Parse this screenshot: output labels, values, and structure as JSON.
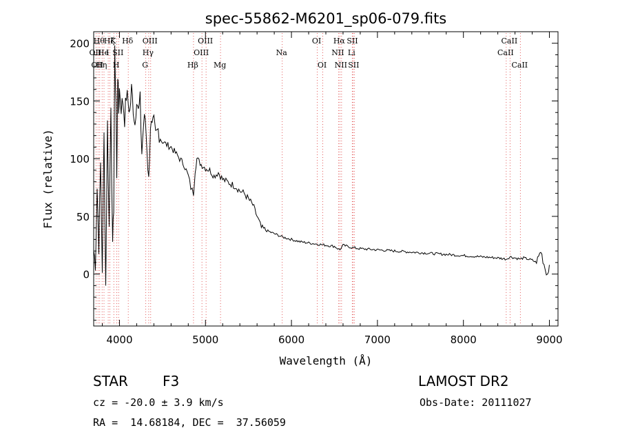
{
  "chart_data": {
    "type": "line",
    "title": "spec-55862-M6201_sp06-079.fits",
    "xlabel": "Wavelength (Å)",
    "ylabel": "Flux (relative)",
    "xlim": [
      3700,
      9100
    ],
    "ylim": [
      -45,
      210
    ],
    "x_ticks": [
      4000,
      5000,
      6000,
      7000,
      8000,
      9000
    ],
    "x_tick_labels": [
      "4000",
      "5000",
      "6000",
      "7000",
      "8000",
      "9000"
    ],
    "y_ticks": [
      0,
      50,
      100,
      150,
      200
    ],
    "y_tick_labels": [
      "0",
      "50",
      "100",
      "150",
      "200"
    ],
    "grid": false,
    "series": [
      {
        "x": [
          3700,
          3720,
          3740,
          3760,
          3780,
          3800,
          3820,
          3840,
          3860,
          3880,
          3900,
          3920,
          3933,
          3945,
          3960,
          3968,
          3980,
          3990,
          4000,
          4020,
          4040,
          4060,
          4080,
          4100,
          4120,
          4140,
          4160,
          4180,
          4200,
          4220,
          4240,
          4260,
          4280,
          4300,
          4320,
          4340,
          4360,
          4380,
          4400,
          4420,
          4450,
          4500,
          4550,
          4600,
          4650,
          4700,
          4750,
          4800,
          4830,
          4861,
          4880,
          4900,
          4950,
          5000,
          5050,
          5100,
          5150,
          5200,
          5250,
          5300,
          5350,
          5400,
          5450,
          5500,
          5550,
          5600,
          5650,
          5700,
          5800,
          5900,
          6000,
          6100,
          6200,
          6300,
          6400,
          6500,
          6563,
          6600,
          6700,
          6800,
          7000,
          7200,
          7400,
          7600,
          7800,
          8000,
          8200,
          8400,
          8498,
          8542,
          8600,
          8662,
          8700,
          8800,
          8850,
          8900,
          8950,
          8980,
          9000
        ],
        "y": [
          20,
          10,
          75,
          25,
          95,
          5,
          120,
          -10,
          130,
          40,
          150,
          20,
          60,
          190,
          150,
          80,
          175,
          140,
          160,
          145,
          150,
          135,
          155,
          150,
          140,
          160,
          145,
          130,
          155,
          140,
          150,
          105,
          130,
          135,
          110,
          80,
          130,
          125,
          130,
          120,
          125,
          115,
          112,
          110,
          105,
          100,
          95,
          85,
          75,
          70,
          90,
          100,
          95,
          92,
          90,
          85,
          88,
          82,
          80,
          78,
          76,
          72,
          70,
          65,
          60,
          50,
          40,
          38,
          35,
          32,
          30,
          28,
          27,
          26,
          25,
          24,
          21,
          25,
          23,
          22,
          21,
          20,
          19,
          18,
          17,
          16,
          15,
          14,
          13,
          15,
          14,
          13,
          14,
          12,
          10,
          20,
          5,
          0,
          8
        ],
        "color": "#000000"
      }
    ],
    "line_markers": [
      {
        "x": 3727,
        "label": "OII",
        "row": 2
      },
      {
        "x": 3750,
        "label": "OII",
        "row": 3
      },
      {
        "x": 3770,
        "label": "Hθ",
        "row": 1
      },
      {
        "x": 3798,
        "label": "Hη",
        "row": 3
      },
      {
        "x": 3820,
        "label": "He",
        "row": 2
      },
      {
        "x": 3869,
        "label": "I",
        "row": 2
      },
      {
        "x": 3889,
        "label": "Hζ",
        "row": 1
      },
      {
        "x": 3934,
        "label": "K",
        "row": 1
      },
      {
        "x": 3969,
        "label": "H",
        "row": 3
      },
      {
        "x": 3990,
        "label": "SII",
        "row": 2
      },
      {
        "x": 4102,
        "label": "Hδ",
        "row": 1
      },
      {
        "x": 4306,
        "label": "G",
        "row": 3
      },
      {
        "x": 4340,
        "label": "Hγ",
        "row": 2
      },
      {
        "x": 4363,
        "label": "OIII",
        "row": 1
      },
      {
        "x": 4861,
        "label": "Hβ",
        "row": 3
      },
      {
        "x": 4959,
        "label": "OIII",
        "row": 2
      },
      {
        "x": 5007,
        "label": "OIII",
        "row": 1
      },
      {
        "x": 5175,
        "label": "Mg",
        "row": 3
      },
      {
        "x": 5893,
        "label": "Na",
        "row": 2
      },
      {
        "x": 6300,
        "label": "OI",
        "row": 1
      },
      {
        "x": 6364,
        "label": "OI",
        "row": 3
      },
      {
        "x": 6548,
        "label": "NII",
        "row": 2
      },
      {
        "x": 6563,
        "label": "Hα",
        "row": 1
      },
      {
        "x": 6583,
        "label": "NII",
        "row": 3
      },
      {
        "x": 6707,
        "label": "Li",
        "row": 2
      },
      {
        "x": 6716,
        "label": "SII",
        "row": 1
      },
      {
        "x": 6731,
        "label": "SII",
        "row": 3
      },
      {
        "x": 8498,
        "label": "CaII",
        "row": 2
      },
      {
        "x": 8542,
        "label": "CaII",
        "row": 1
      },
      {
        "x": 8662,
        "label": "CaII",
        "row": 3
      }
    ]
  },
  "info": {
    "class_label": "STAR",
    "subclass": "F3",
    "survey": "LAMOST DR2",
    "cz": "cz = -20.0 ± 3.9 km/s",
    "obs_date": "Obs-Date: 20111027",
    "radec": "RA =  14.68184, DEC =  37.56059"
  }
}
